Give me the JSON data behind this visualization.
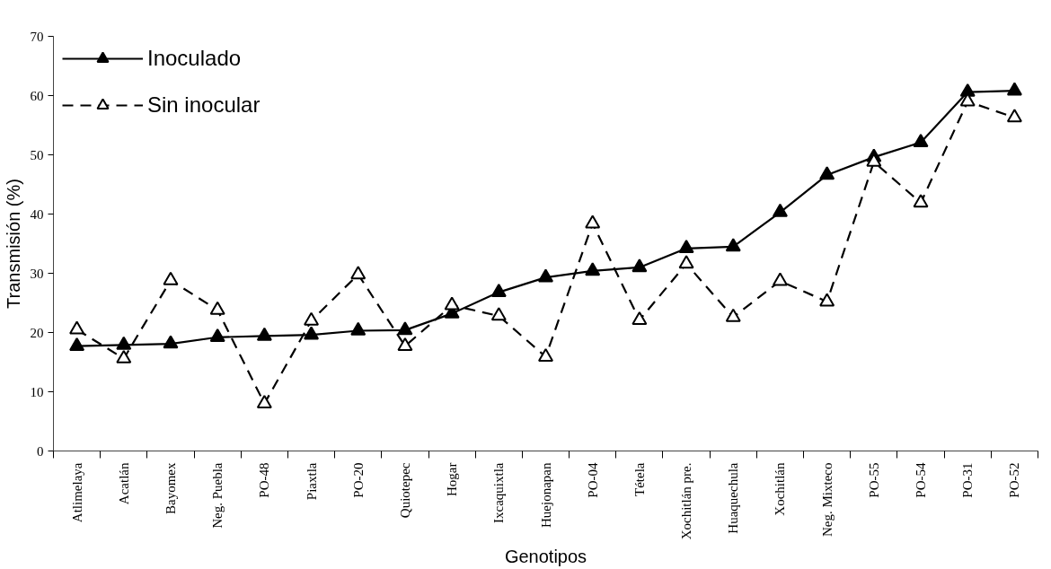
{
  "chart_data": {
    "type": "line",
    "xlabel": "Genotipos",
    "ylabel": "Transmisión (%)",
    "categories": [
      "Atlimelaya",
      "Acatlán",
      "Bayomex",
      "Neg. Puebla",
      "PO-48",
      "Piaxtla",
      "PO-20",
      "Quiotepec",
      "Hogar",
      "Ixcaquixtla",
      "Huejonapan",
      "PO-04",
      "Tétela",
      "Xochitlán pre.",
      "Huaquechula",
      "Xochitlán",
      "Neg. Mixteco",
      "PO-55",
      "PO-54",
      "PO-31",
      "PO-52"
    ],
    "series": [
      {
        "name": "Inoculado",
        "color": "#000000",
        "marker": "triangle",
        "line_style": "solid",
        "values": [
          17.7,
          17.9,
          18.1,
          19.2,
          19.4,
          19.6,
          20.3,
          20.4,
          23.2,
          26.8,
          29.3,
          30.4,
          31.0,
          34.2,
          34.5,
          40.3,
          46.6,
          49.6,
          52.1,
          60.6,
          60.8
        ]
      },
      {
        "name": "Sin inocular",
        "color": "#000000",
        "marker": "triangle",
        "line_style": "dashed",
        "values": [
          20.5,
          15.6,
          28.8,
          23.8,
          8.0,
          22.0,
          29.8,
          17.7,
          24.6,
          22.8,
          15.9,
          38.4,
          22.1,
          31.6,
          22.6,
          28.7,
          25.2,
          48.8,
          41.9,
          59.0,
          56.3
        ]
      }
    ],
    "ylim": [
      0,
      70
    ],
    "yticks": [
      0,
      10,
      20,
      30,
      40,
      50,
      60,
      70
    ],
    "grid": false,
    "legend": "top left"
  }
}
